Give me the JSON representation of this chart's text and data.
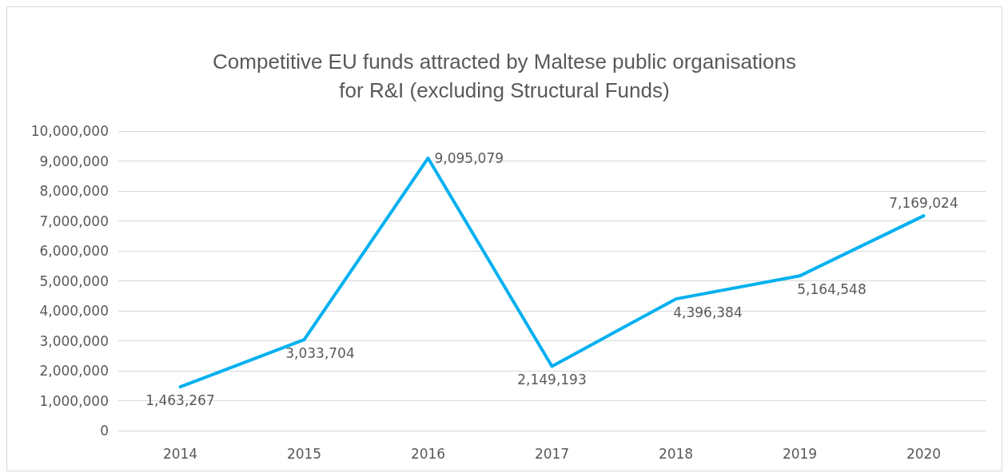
{
  "chart_data": {
    "type": "line",
    "title": "Competitive EU funds attracted by Maltese public organisations\nfor R&I (excluding Structural Funds)",
    "categories": [
      "2014",
      "2015",
      "2016",
      "2017",
      "2018",
      "2019",
      "2020"
    ],
    "series": [
      {
        "color": "#00b0f0",
        "values": [
          1463267,
          3033704,
          9095079,
          2149193,
          4396384,
          5164548,
          7169024
        ],
        "value_labels": [
          "1,463,267",
          "3,033,704",
          "9,095,079",
          "2,149,193",
          "4,396,384",
          "5,164,548",
          "7,169,024"
        ]
      }
    ],
    "ylim": [
      0,
      10000000
    ],
    "yticks": [
      0,
      {
        "value": 1000000,
        "label": "1,000,000"
      },
      {
        "value": 2000000,
        "label": "2,000,000"
      },
      {
        "value": 3000000,
        "label": "3,000,000"
      },
      {
        "value": 4000000,
        "label": "4,000,000"
      },
      {
        "value": 5000000,
        "label": "5,000,000"
      },
      {
        "value": 6000000,
        "label": "6,000,000"
      },
      {
        "value": 7000000,
        "label": "7,000,000"
      },
      {
        "value": 8000000,
        "label": "8,000,000"
      },
      {
        "value": 9000000,
        "label": "9,000,000"
      },
      {
        "value": 10000000,
        "label": "10,000,000"
      }
    ],
    "grid": "y",
    "marker": "none",
    "line_style": "solid"
  }
}
